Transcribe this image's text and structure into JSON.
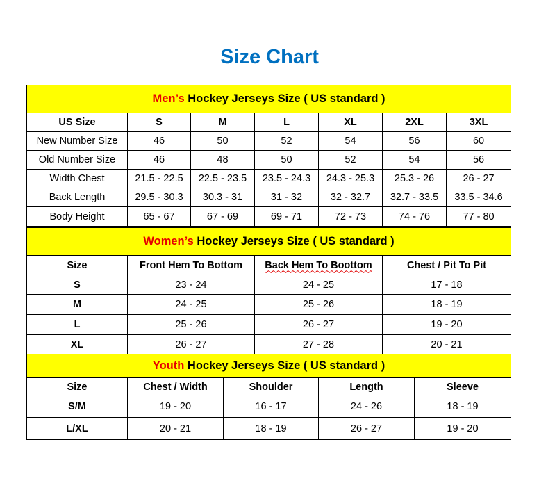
{
  "title": "Size Chart",
  "colors": {
    "title": "#0070c0",
    "header_bg": "#ffff00",
    "highlight": "#e60000"
  },
  "sections": [
    {
      "highlight": "Men’s",
      "heading": " Hockey Jerseys Size ( US standard )",
      "columns": [
        "US Size",
        "S",
        "M",
        "L",
        "XL",
        "2XL",
        "3XL"
      ],
      "rows": [
        [
          "New Number Size",
          "46",
          "50",
          "52",
          "54",
          "56",
          "60"
        ],
        [
          "Old Number Size",
          "46",
          "48",
          "50",
          "52",
          "54",
          "56"
        ],
        [
          "Width Chest",
          "21.5 - 22.5",
          "22.5 - 23.5",
          "23.5 - 24.3",
          "24.3 - 25.3",
          "25.3 - 26",
          "26 - 27"
        ],
        [
          "Back Length",
          "29.5 - 30.3",
          "30.3 - 31",
          "31 - 32",
          "32 - 32.7",
          "32.7 - 33.5",
          "33.5 - 34.6"
        ],
        [
          "Body Height",
          "65 - 67",
          "67 - 69",
          "69 - 71",
          "72 - 73",
          "74 - 76",
          "77 - 80"
        ]
      ]
    },
    {
      "highlight": "Women’s",
      "heading": " Hockey Jerseys Size ( US standard )",
      "columns": [
        "Size",
        "Front Hem To Bottom",
        "Back Hem To Boottom",
        "Chest / Pit To Pit"
      ],
      "rows": [
        [
          "S",
          "23 - 24",
          "24 - 25",
          "17 - 18"
        ],
        [
          "M",
          "24 - 25",
          "25 - 26",
          "18 - 19"
        ],
        [
          "L",
          "25 - 26",
          "26 - 27",
          "19 - 20"
        ],
        [
          "XL",
          "26 - 27",
          "27 - 28",
          "20 - 21"
        ]
      ]
    },
    {
      "highlight": "Youth",
      "heading": " Hockey Jerseys Size ( US standard )",
      "columns": [
        "Size",
        "Chest / Width",
        "Shoulder",
        "Length",
        "Sleeve"
      ],
      "rows": [
        [
          "S/M",
          "19 - 20",
          "16 - 17",
          "24 - 26",
          "18 - 19"
        ],
        [
          "L/XL",
          "20 - 21",
          "18 - 19",
          "26 - 27",
          "19 - 20"
        ]
      ]
    }
  ]
}
